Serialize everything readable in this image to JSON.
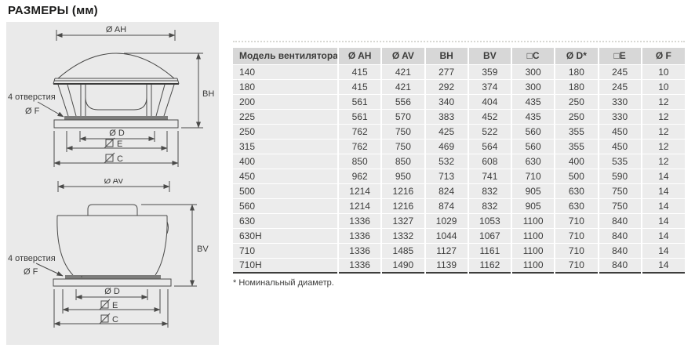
{
  "page": {
    "title": "РАЗМЕРЫ (мм)",
    "footnote": "* Номинальный диаметр."
  },
  "diagrams": {
    "horizontal_fan": {
      "dim_ah": "Ø AH",
      "dim_bh": "BH",
      "holes_note": "4 отверстия",
      "dim_f": "Ø F",
      "dim_d": "Ø D",
      "dim_e": "E",
      "dim_c": "C"
    },
    "vertical_fan": {
      "dim_av": "Ø AV",
      "dim_bv": "BV",
      "holes_note": "4 отверстия",
      "dim_f": "Ø F",
      "dim_d": "Ø D",
      "dim_e": "E",
      "dim_c": "C"
    }
  },
  "table": {
    "headers": [
      "Модель вентилятора",
      "Ø AH",
      "Ø AV",
      "BH",
      "BV",
      "□C",
      "Ø D*",
      "□E",
      "Ø F"
    ],
    "rows": [
      [
        "140",
        "415",
        "421",
        "277",
        "359",
        "300",
        "180",
        "245",
        "10"
      ],
      [
        "180",
        "415",
        "421",
        "292",
        "374",
        "300",
        "180",
        "245",
        "10"
      ],
      [
        "200",
        "561",
        "556",
        "340",
        "404",
        "435",
        "250",
        "330",
        "12"
      ],
      [
        "225",
        "561",
        "570",
        "383",
        "452",
        "435",
        "250",
        "330",
        "12"
      ],
      [
        "250",
        "762",
        "750",
        "425",
        "522",
        "560",
        "355",
        "450",
        "12"
      ],
      [
        "315",
        "762",
        "750",
        "469",
        "564",
        "560",
        "355",
        "450",
        "12"
      ],
      [
        "400",
        "850",
        "850",
        "532",
        "608",
        "630",
        "400",
        "535",
        "12"
      ],
      [
        "450",
        "962",
        "950",
        "713",
        "741",
        "710",
        "500",
        "590",
        "14"
      ],
      [
        "500",
        "1214",
        "1216",
        "824",
        "832",
        "905",
        "630",
        "750",
        "14"
      ],
      [
        "560",
        "1214",
        "1216",
        "874",
        "832",
        "905",
        "630",
        "750",
        "14"
      ],
      [
        "630",
        "1336",
        "1327",
        "1029",
        "1053",
        "1100",
        "710",
        "840",
        "14"
      ],
      [
        "630H",
        "1336",
        "1332",
        "1044",
        "1067",
        "1100",
        "710",
        "840",
        "14"
      ],
      [
        "710",
        "1336",
        "1485",
        "1127",
        "1161",
        "1100",
        "710",
        "840",
        "14"
      ],
      [
        "710H",
        "1336",
        "1490",
        "1139",
        "1162",
        "1100",
        "710",
        "840",
        "14"
      ]
    ]
  },
  "colors": {
    "panel_bg": "#eaeaea",
    "table_header_bg": "#d7d7d7",
    "table_row_bg": "#ececec",
    "dark_rule": "#3d3d3c",
    "text": "#3c3c3b",
    "drawing_line": "#4a4a49"
  }
}
